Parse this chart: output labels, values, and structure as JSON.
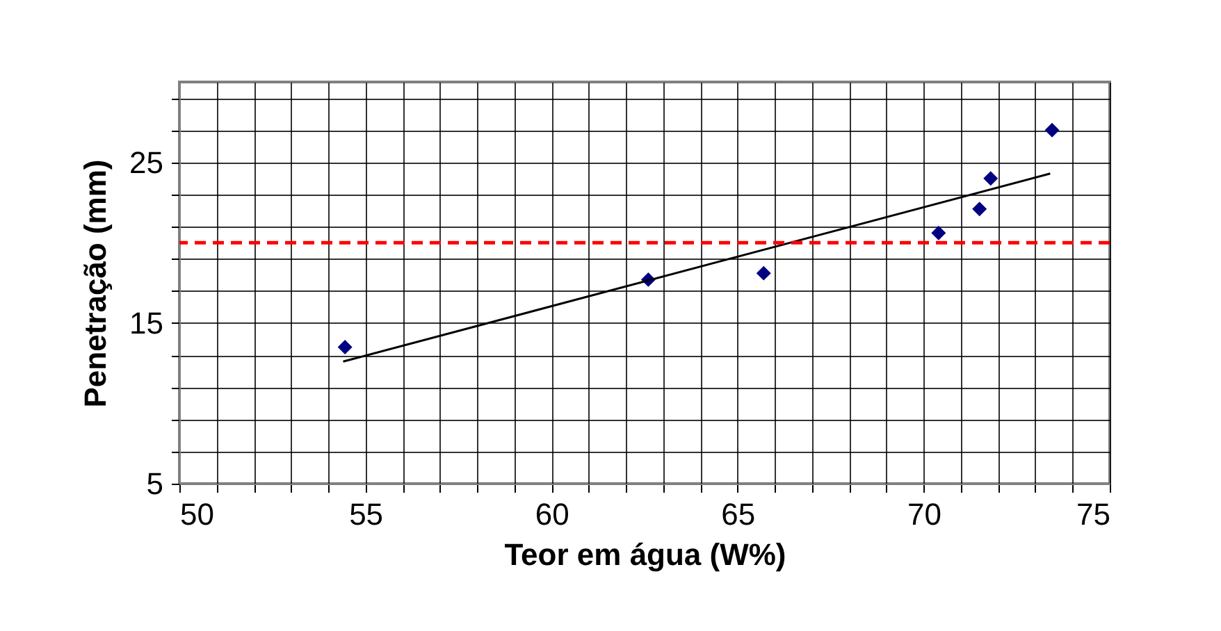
{
  "chart_data": {
    "type": "scatter",
    "xlabel": "Teor em água (W%)",
    "ylabel": "Penetração (mm)",
    "xlim": [
      50,
      75
    ],
    "ylim": [
      5,
      30
    ],
    "xticks": [
      50,
      {
        "value": 51,
        "label": null
      },
      {
        "value": 52,
        "label": null
      },
      {
        "value": 53,
        "label": null
      },
      {
        "value": 54,
        "label": null
      },
      55,
      {
        "value": 56,
        "label": null
      },
      {
        "value": 57,
        "label": null
      },
      {
        "value": 58,
        "label": null
      },
      {
        "value": 59,
        "label": null
      },
      60,
      {
        "value": 61,
        "label": null
      },
      {
        "value": 62,
        "label": null
      },
      {
        "value": 63,
        "label": null
      },
      {
        "value": 64,
        "label": null
      },
      65,
      {
        "value": 66,
        "label": null
      },
      {
        "value": 67,
        "label": null
      },
      {
        "value": 68,
        "label": null
      },
      {
        "value": 69,
        "label": null
      },
      70,
      {
        "value": 71,
        "label": null
      },
      {
        "value": 72,
        "label": null
      },
      {
        "value": 73,
        "label": null
      },
      {
        "value": 74,
        "label": null
      },
      75
    ],
    "yticks": [
      5,
      {
        "value": 7,
        "label": null
      },
      {
        "value": 9,
        "label": null
      },
      {
        "value": 11,
        "label": null
      },
      {
        "value": 13,
        "label": null
      },
      15,
      {
        "value": 17,
        "label": null
      },
      {
        "value": 19,
        "label": null
      },
      {
        "value": 21,
        "label": null
      },
      {
        "value": 23,
        "label": null
      },
      25,
      {
        "value": 27,
        "label": null
      },
      {
        "value": 29,
        "label": null
      }
    ],
    "grid": true,
    "marker": "diamond",
    "series": [
      {
        "color": "#000080",
        "x": [
          54.45,
          62.6,
          65.7,
          70.4,
          71.5,
          71.8,
          73.45
        ],
        "values": [
          13.5,
          17.7,
          18.1,
          20.6,
          22.1,
          24.0,
          27.0
        ]
      },
      {
        "type": "line",
        "color": "#000000",
        "marker": "none",
        "x": [
          54.4,
          73.4
        ],
        "values": [
          12.6,
          24.3
        ]
      }
    ],
    "ref_lines": [
      {
        "axis": "y",
        "value": 20,
        "color": "#ff0000",
        "line_style": "dashed"
      }
    ]
  }
}
